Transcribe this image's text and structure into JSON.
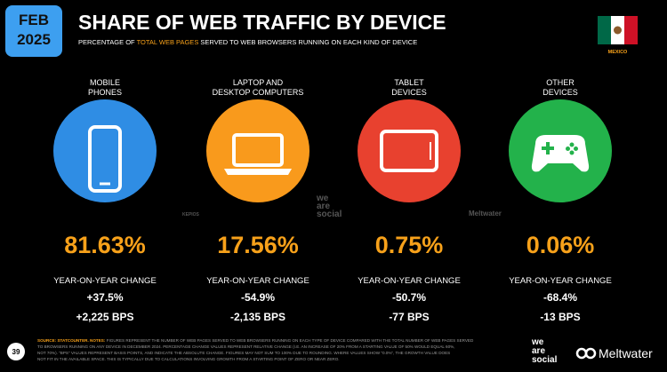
{
  "header": {
    "month": "FEB",
    "year": "2025",
    "title": "SHARE OF WEB TRAFFIC BY DEVICE",
    "subtitle": [
      "PERCENTAGE OF ",
      "TOTAL WEB PAGES",
      " SERVED TO WEB BROWSERS RUNNING ON EACH KIND OF DEVICE"
    ],
    "country": "MEXICO"
  },
  "devices": [
    {
      "label": [
        "MOBILE",
        "PHONES"
      ],
      "share": "81.63%",
      "change_label": "YEAR-ON-YEAR CHANGE",
      "change": "+37.5%",
      "bps": "+2,225 BPS"
    },
    {
      "label": [
        "LAPTOP AND",
        "DESKTOP COMPUTERS"
      ],
      "share": "17.56%",
      "change_label": "YEAR-ON-YEAR CHANGE",
      "change": "-54.9%",
      "bps": "-2,135 BPS"
    },
    {
      "label": [
        "TABLET",
        "DEVICES"
      ],
      "share": "0.75%",
      "change_label": "YEAR-ON-YEAR CHANGE",
      "change": "-50.7%",
      "bps": "-77 BPS"
    },
    {
      "label": [
        "OTHER",
        "DEVICES"
      ],
      "share": "0.06%",
      "change_label": "YEAR-ON-YEAR CHANGE",
      "change": "-68.4%",
      "bps": "-13 BPS"
    }
  ],
  "watermarks": [
    "KEPIOS",
    "we",
    "are",
    "social",
    "Meltwater"
  ],
  "footer": {
    "page": "39",
    "source_label": "SOURCE: STATCOUNTER. NOTES:",
    "notes": [
      " FIGURES REPRESENT THE NUMBER OF WEB PAGES SERVED TO WEB BROWSERS RUNNING ON EACH TYPE OF DEVICE COMPARED WITH THE TOTAL NUMBER OF WEB PAGES SERVED",
      "TO BROWSERS RUNNING ON ANY DEVICE IN DECEMBER 2024. PERCENTAGE CHANGE VALUES REPRESENT RELATIVE CHANGE (I.E. AN INCREASE OF 20% FROM A STARTING VALUE OF 50% WOULD EQUAL 60%,",
      "NOT 70%). \"BPS\" VALUES REPRESENT BASIS POINTS, AND INDICATE THE ABSOLUTE CHANGE. FIGURES MAY NOT SUM TO 100% DUE TO ROUNDING. WHERE VALUES SHOW \"0.0%\", THE GROWTH VALUE DOES",
      "NOT FIT IN THE AVAILABLE SPACE. THIS IS TYPICALLY DUE TO CALCULATIONS INVOLVING GROWTH FROM A STARTING POINT OF ZERO OR NEAR ZERO."
    ],
    "logo_we": "we",
    "logo_are": "are",
    "logo_social": "social",
    "logo_meltwater": "Meltwater"
  }
}
